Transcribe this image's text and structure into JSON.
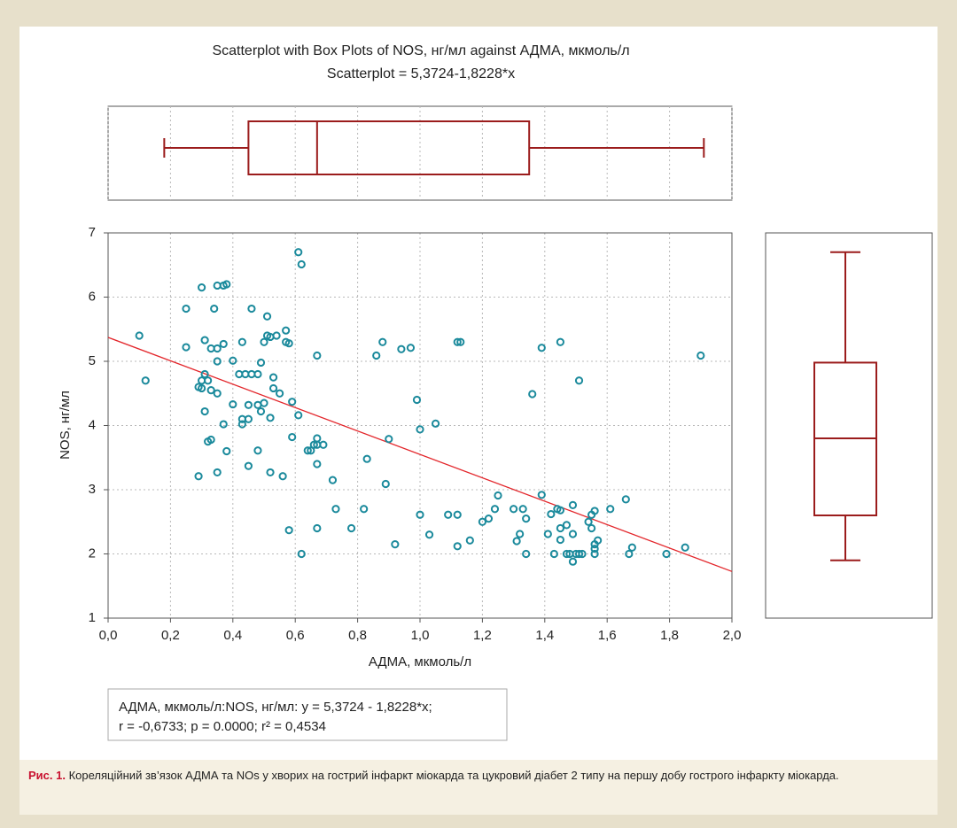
{
  "chart_data": {
    "type": "scatter-boxplot",
    "title": "Scatterplot with Box Plots of NOS, нг/мл against АДМА, мкмоль/л",
    "subtitle": "Scatterplot = 5,3724-1,8228*x",
    "x_label": "АДМА, мкмоль/л",
    "y_label": "NOS, нг/мл",
    "xlim": [
      0,
      2
    ],
    "ylim": [
      1,
      7
    ],
    "xticks": [
      {
        "value": 0,
        "label": "0,0"
      },
      {
        "value": 0.2,
        "label": "0,2"
      },
      {
        "value": 0.4,
        "label": "0,4"
      },
      {
        "value": 0.6,
        "label": "0,6"
      },
      {
        "value": 0.8,
        "label": "0,8"
      },
      {
        "value": 1.0,
        "label": "1,0"
      },
      {
        "value": 1.2,
        "label": "1,2"
      },
      {
        "value": 1.4,
        "label": "1,4"
      },
      {
        "value": 1.6,
        "label": "1,6"
      },
      {
        "value": 1.8,
        "label": "1,8"
      },
      {
        "value": 2.0,
        "label": "2,0"
      }
    ],
    "yticks": [
      1,
      2,
      3,
      4,
      5,
      6,
      7
    ],
    "grid": true,
    "point_color": "#1b8a9c",
    "x": [
      0.1,
      0.12,
      0.25,
      0.25,
      0.3,
      0.3,
      0.29,
      0.3,
      0.31,
      0.31,
      0.31,
      0.32,
      0.33,
      0.33,
      0.33,
      0.34,
      0.35,
      0.35,
      0.35,
      0.35,
      0.35,
      0.37,
      0.38,
      0.37,
      0.37,
      0.38,
      0.4,
      0.4,
      0.29,
      0.32,
      0.42,
      0.43,
      0.44,
      0.43,
      0.43,
      0.45,
      0.45,
      0.46,
      0.46,
      0.45,
      0.48,
      0.48,
      0.48,
      0.49,
      0.49,
      0.5,
      0.5,
      0.51,
      0.51,
      0.52,
      0.52,
      0.53,
      0.53,
      0.52,
      0.54,
      0.55,
      0.56,
      0.57,
      0.57,
      0.58,
      0.58,
      0.59,
      0.59,
      0.61,
      0.61,
      0.62,
      0.62,
      0.64,
      0.65,
      0.66,
      0.67,
      0.67,
      0.67,
      0.67,
      0.67,
      0.69,
      0.72,
      0.73,
      0.78,
      0.82,
      0.83,
      0.86,
      0.88,
      0.89,
      0.9,
      0.92,
      0.94,
      0.97,
      0.99,
      1.0,
      1.0,
      1.03,
      1.05,
      1.09,
      1.12,
      1.12,
      1.12,
      1.13,
      1.16,
      1.2,
      1.22,
      1.24,
      1.25,
      1.3,
      1.31,
      1.32,
      1.33,
      1.34,
      1.34,
      1.36,
      1.39,
      1.39,
      1.41,
      1.42,
      1.43,
      1.44,
      1.45,
      1.45,
      1.45,
      1.45,
      1.47,
      1.47,
      1.48,
      1.49,
      1.49,
      1.49,
      1.5,
      1.51,
      1.51,
      1.52,
      1.54,
      1.55,
      1.55,
      1.56,
      1.56,
      1.56,
      1.56,
      1.57,
      1.61,
      1.66,
      1.67,
      1.68,
      1.79,
      1.85,
      1.9
    ],
    "values": [
      5.4,
      4.7,
      5.82,
      5.22,
      6.15,
      4.7,
      4.6,
      4.58,
      5.33,
      4.8,
      4.22,
      3.75,
      3.78,
      4.55,
      5.2,
      5.82,
      5.2,
      5.0,
      4.5,
      3.27,
      6.18,
      6.18,
      6.2,
      5.27,
      4.02,
      3.6,
      4.33,
      5.01,
      3.21,
      4.7,
      4.8,
      5.3,
      4.8,
      4.1,
      4.02,
      4.1,
      4.32,
      4.8,
      5.82,
      3.37,
      3.61,
      4.32,
      4.8,
      4.22,
      4.98,
      5.3,
      4.35,
      5.7,
      5.4,
      4.12,
      5.38,
      4.75,
      4.58,
      3.27,
      5.4,
      4.5,
      3.21,
      5.48,
      5.3,
      5.28,
      2.37,
      4.37,
      3.82,
      4.16,
      6.7,
      6.51,
      2.0,
      3.61,
      3.61,
      3.7,
      3.8,
      3.7,
      3.4,
      5.09,
      2.4,
      3.7,
      3.15,
      2.7,
      2.4,
      2.7,
      3.48,
      5.09,
      5.3,
      3.09,
      3.79,
      2.15,
      5.19,
      5.21,
      4.4,
      3.94,
      2.61,
      2.3,
      4.03,
      2.61,
      5.3,
      2.61,
      2.12,
      5.3,
      2.21,
      2.5,
      2.55,
      2.7,
      2.91,
      2.7,
      2.2,
      2.31,
      2.7,
      2.55,
      2.0,
      4.49,
      5.21,
      2.92,
      2.31,
      2.62,
      2.0,
      2.7,
      5.3,
      2.68,
      2.4,
      2.22,
      2.0,
      2.45,
      2.0,
      1.88,
      2.31,
      2.76,
      2.0,
      4.7,
      2.0,
      2.0,
      2.5,
      2.4,
      2.61,
      2.67,
      2.15,
      2.08,
      2.0,
      2.21,
      2.7,
      2.85,
      2.0,
      2.1,
      2.0,
      2.1,
      5.09
    ],
    "regression": {
      "intercept": 5.3724,
      "slope": -1.8228,
      "color": "#e3262b"
    },
    "box_color": "#9b1c1c",
    "x_boxplot": {
      "whisker_low": 0.18,
      "q1": 0.45,
      "median": 0.67,
      "q3": 1.35,
      "whisker_high": 1.91
    },
    "y_boxplot": {
      "whisker_low": 1.9,
      "q1": 2.6,
      "median": 3.8,
      "q3": 4.98,
      "whisker_high": 6.7
    },
    "stats": [
      "АДМА, мкмоль/л:NOS, нг/мл: y = 5,3724 - 1,8228*x;",
      "r = -0,6733; p = 0.0000; r² = 0,4534"
    ]
  },
  "caption": {
    "label": "Рис. 1.",
    "text": " Кореляційний зв’язок АДМА та NOs у хворих на гострий інфаркт міокарда та цукровий діабет 2 типу на першу добу гострого інфаркту міокарда."
  }
}
